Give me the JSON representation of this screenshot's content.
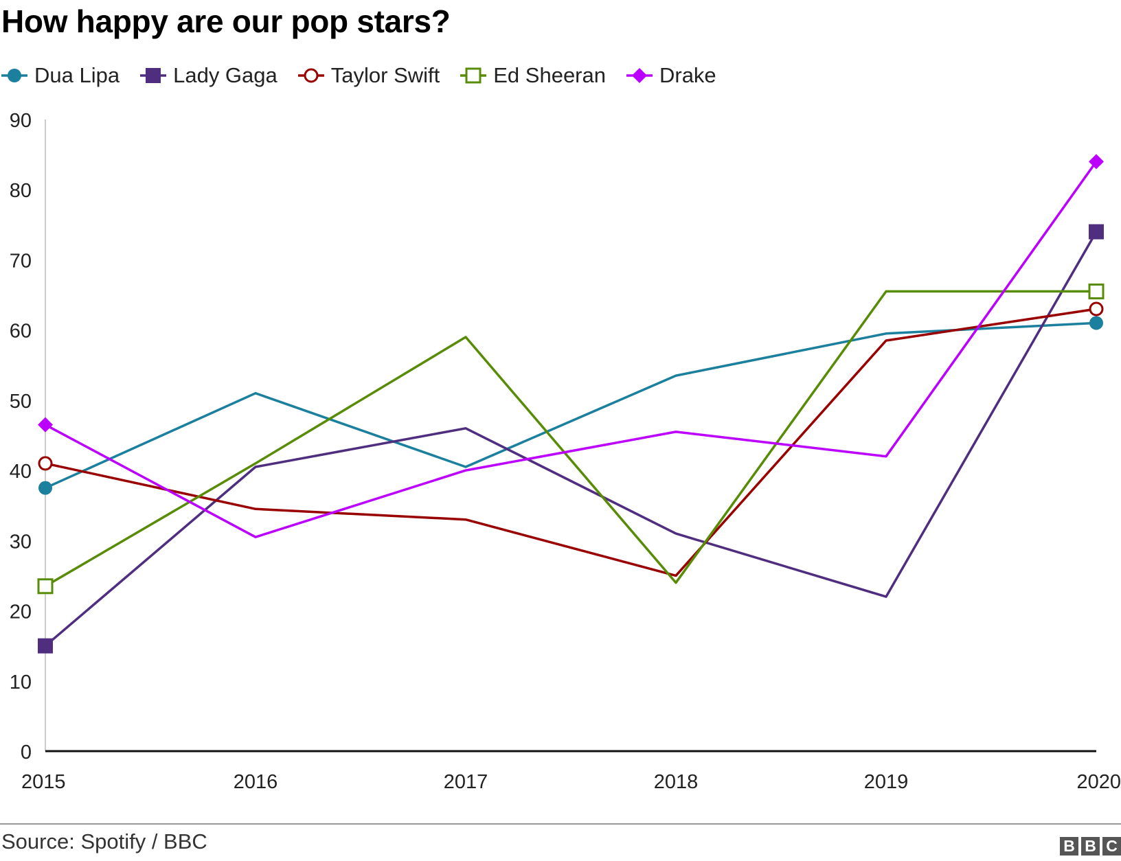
{
  "title": "How happy are our pop stars?",
  "source": "Source: Spotify / BBC",
  "logo": {
    "letters": [
      "B",
      "B",
      "C"
    ]
  },
  "chart_data": {
    "type": "line",
    "title": "How happy are our pop stars?",
    "xlabel": "",
    "ylabel": "",
    "x": [
      "2015",
      "2016",
      "2017",
      "2018",
      "2019",
      "2020"
    ],
    "ylim": [
      0,
      90
    ],
    "yticks": [
      0,
      10,
      20,
      30,
      40,
      50,
      60,
      70,
      80,
      90
    ],
    "grid": false,
    "legend_position": "top-left",
    "series": [
      {
        "name": "Dua Lipa",
        "color": "#1b7f9e",
        "marker": "circle-filled",
        "values": [
          37.5,
          51,
          40.5,
          53.5,
          59.5,
          61
        ]
      },
      {
        "name": "Lady Gaga",
        "color": "#4f2d7f",
        "marker": "square-filled",
        "values": [
          15,
          40.5,
          46,
          31,
          22,
          74
        ]
      },
      {
        "name": "Taylor Swift",
        "color": "#990000",
        "marker": "circle-open",
        "values": [
          41,
          34.5,
          33,
          25,
          58.5,
          63
        ]
      },
      {
        "name": "Ed Sheeran",
        "color": "#588c07",
        "marker": "square-open",
        "values": [
          23.5,
          41,
          59,
          24,
          65.5,
          65.5
        ]
      },
      {
        "name": "Drake",
        "color": "#bb00ff",
        "marker": "diamond-filled",
        "values": [
          46.5,
          30.5,
          40,
          45.5,
          42,
          84
        ]
      }
    ]
  }
}
